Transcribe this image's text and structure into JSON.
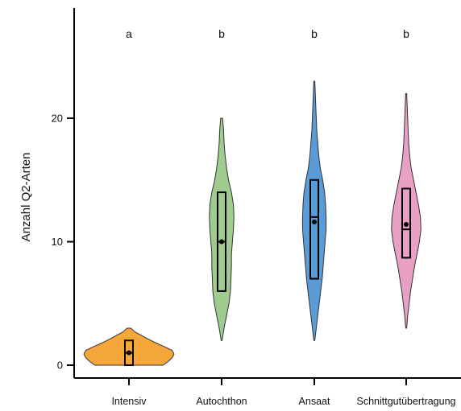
{
  "chart_data": {
    "type": "violin",
    "title": "",
    "xlabel": "",
    "ylabel": "Anzahl Q2-Arten",
    "ylim": [
      -1.5,
      28
    ],
    "yticks": [
      0,
      10,
      20
    ],
    "grid": false,
    "legend": "none",
    "categories": [
      "Intensiv",
      "Autochthon",
      "Ansaat",
      "Schnittgutübertragung"
    ],
    "significance_letters": [
      "a",
      "b",
      "b",
      "b"
    ],
    "series": [
      {
        "category": "Intensiv",
        "color": "#F5A73B",
        "range": [
          0,
          3
        ],
        "box": {
          "q1": 0,
          "median": 1,
          "q3": 2
        },
        "mean": 1,
        "density": [
          [
            0,
            0.7
          ],
          [
            0.3,
            0.8
          ],
          [
            0.6,
            0.88
          ],
          [
            0.9,
            0.92
          ],
          [
            1.2,
            0.88
          ],
          [
            1.5,
            0.72
          ],
          [
            1.8,
            0.55
          ],
          [
            2.1,
            0.4
          ],
          [
            2.4,
            0.26
          ],
          [
            2.7,
            0.12
          ],
          [
            3.0,
            0.04
          ]
        ]
      },
      {
        "category": "Autochthon",
        "color": "#9FCB8E",
        "range": [
          2,
          20
        ],
        "box": {
          "q1": 6,
          "median": 10,
          "q3": 14
        },
        "mean": 10,
        "density": [
          [
            2,
            0.01
          ],
          [
            3,
            0.05
          ],
          [
            4,
            0.1
          ],
          [
            5,
            0.15
          ],
          [
            6,
            0.18
          ],
          [
            7,
            0.19
          ],
          [
            8,
            0.2
          ],
          [
            9,
            0.2
          ],
          [
            10,
            0.22
          ],
          [
            11,
            0.24
          ],
          [
            12,
            0.25
          ],
          [
            13,
            0.24
          ],
          [
            14,
            0.2
          ],
          [
            15,
            0.14
          ],
          [
            16,
            0.1
          ],
          [
            17,
            0.07
          ],
          [
            18,
            0.05
          ],
          [
            19,
            0.04
          ],
          [
            20,
            0.02
          ]
        ]
      },
      {
        "category": "Ansaat",
        "color": "#5B9BD5",
        "range": [
          2,
          23
        ],
        "box": {
          "q1": 7,
          "median": 12,
          "q3": 15
        },
        "mean": 11.6,
        "density": [
          [
            2,
            0.01
          ],
          [
            3,
            0.04
          ],
          [
            4,
            0.07
          ],
          [
            5,
            0.1
          ],
          [
            6,
            0.13
          ],
          [
            7,
            0.16
          ],
          [
            8,
            0.18
          ],
          [
            9,
            0.2
          ],
          [
            10,
            0.22
          ],
          [
            11,
            0.24
          ],
          [
            12,
            0.24
          ],
          [
            13,
            0.23
          ],
          [
            14,
            0.21
          ],
          [
            15,
            0.17
          ],
          [
            16,
            0.12
          ],
          [
            17,
            0.09
          ],
          [
            18,
            0.07
          ],
          [
            19,
            0.05
          ],
          [
            20,
            0.04
          ],
          [
            21,
            0.03
          ],
          [
            22,
            0.02
          ],
          [
            23,
            0.01
          ]
        ]
      },
      {
        "category": "Schnittgutübertragung",
        "color": "#E8A0C4",
        "range": [
          3,
          22
        ],
        "box": {
          "q1": 8.7,
          "median": 11,
          "q3": 14.3
        },
        "mean": 11.4,
        "density": [
          [
            3,
            0.01
          ],
          [
            4,
            0.03
          ],
          [
            5,
            0.06
          ],
          [
            6,
            0.09
          ],
          [
            7,
            0.13
          ],
          [
            8,
            0.17
          ],
          [
            9,
            0.22
          ],
          [
            10,
            0.27
          ],
          [
            11,
            0.3
          ],
          [
            12,
            0.29
          ],
          [
            13,
            0.25
          ],
          [
            14,
            0.2
          ],
          [
            15,
            0.15
          ],
          [
            16,
            0.1
          ],
          [
            17,
            0.07
          ],
          [
            18,
            0.05
          ],
          [
            19,
            0.04
          ],
          [
            20,
            0.03
          ],
          [
            21,
            0.02
          ],
          [
            22,
            0.01
          ]
        ]
      }
    ]
  }
}
